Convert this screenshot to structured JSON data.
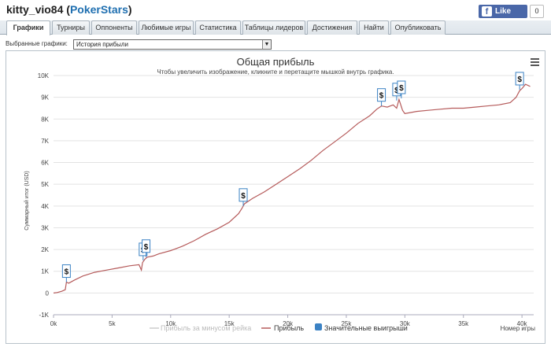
{
  "header": {
    "player": "kitty_vio84",
    "network": "PokerStars",
    "fb_label": "Like",
    "fb_count": "0"
  },
  "tabs": [
    {
      "label": "Графики",
      "active": true
    },
    {
      "label": "Турниры",
      "active": false
    },
    {
      "label": "Оппоненты",
      "active": false
    },
    {
      "label": "Любимые игры",
      "active": false
    },
    {
      "label": "Статистика",
      "active": false
    },
    {
      "label": "Таблицы лидеров",
      "active": false
    },
    {
      "label": "Достижения",
      "active": false
    },
    {
      "label": "Найти",
      "active": false
    },
    {
      "label": "Опубликовать",
      "active": false
    }
  ],
  "selector": {
    "label": "Выбранные графики:",
    "value": "История прибыли"
  },
  "chart_data": {
    "type": "line",
    "title": "Общая прибыль",
    "subtitle": "Чтобы увеличить изображение, кликните и перетащите мышкой внутрь графика.",
    "xlabel": "Номер игры",
    "ylabel": "Суммарный итог (USD)",
    "xlim": [
      0,
      41000
    ],
    "ylim": [
      -1000,
      10000
    ],
    "xticks": [
      0,
      5000,
      10000,
      15000,
      20000,
      25000,
      30000,
      35000,
      40000
    ],
    "xtick_labels": [
      "0k",
      "5k",
      "10k",
      "15k",
      "20k",
      "25k",
      "30k",
      "35k",
      "40k"
    ],
    "yticks": [
      -1000,
      0,
      1000,
      2000,
      3000,
      4000,
      5000,
      6000,
      7000,
      8000,
      9000,
      10000
    ],
    "ytick_labels": [
      "-1K",
      "0",
      "1K",
      "2K",
      "3K",
      "4K",
      "5K",
      "6K",
      "7K",
      "8K",
      "9K",
      "10K"
    ],
    "grid": true,
    "legend_position": "bottom",
    "legend": [
      {
        "label": "Прибыль за минусом рейка",
        "color": "#cccccc",
        "kind": "line",
        "disabled": true
      },
      {
        "label": "Прибыль",
        "color": "#b55a5a",
        "kind": "line",
        "disabled": false
      },
      {
        "label": "Значительные выигрыши",
        "color": "#3b82c4",
        "kind": "marker",
        "disabled": false
      }
    ],
    "series": [
      {
        "name": "Прибыль",
        "color": "#b55a5a",
        "x": [
          0,
          300,
          700,
          1000,
          1100,
          1300,
          1800,
          2500,
          3500,
          4500,
          5500,
          6500,
          7300,
          7500,
          7600,
          7800,
          8000,
          8500,
          9000,
          10000,
          11000,
          12000,
          13000,
          14000,
          15000,
          15800,
          16100,
          16300,
          17000,
          18000,
          19000,
          20000,
          21000,
          22000,
          23000,
          24000,
          25000,
          26000,
          27000,
          27600,
          28000,
          28500,
          29000,
          29300,
          29500,
          29800,
          30000,
          30500,
          31000,
          32000,
          33000,
          34000,
          35000,
          36000,
          37000,
          38000,
          39000,
          39500,
          39800,
          40000,
          40300,
          40700
        ],
        "values": [
          0,
          20,
          80,
          150,
          500,
          450,
          600,
          780,
          950,
          1050,
          1150,
          1250,
          1300,
          1050,
          1400,
          1550,
          1650,
          1700,
          1800,
          1950,
          2150,
          2400,
          2700,
          2950,
          3250,
          3650,
          3900,
          4100,
          4350,
          4650,
          5000,
          5350,
          5700,
          6100,
          6550,
          6950,
          7350,
          7800,
          8150,
          8450,
          8600,
          8550,
          8650,
          8500,
          8900,
          8400,
          8250,
          8300,
          8350,
          8400,
          8450,
          8500,
          8500,
          8550,
          8600,
          8650,
          8750,
          9000,
          9300,
          9400,
          9600,
          9500
        ]
      }
    ],
    "big_wins": [
      {
        "x": 1100,
        "y": 500
      },
      {
        "x": 7650,
        "y": 1500
      },
      {
        "x": 7900,
        "y": 1650
      },
      {
        "x": 16200,
        "y": 4000
      },
      {
        "x": 28000,
        "y": 8600
      },
      {
        "x": 29300,
        "y": 8850
      },
      {
        "x": 29700,
        "y": 8950
      },
      {
        "x": 39800,
        "y": 9350
      }
    ],
    "marker_symbol": "$"
  }
}
